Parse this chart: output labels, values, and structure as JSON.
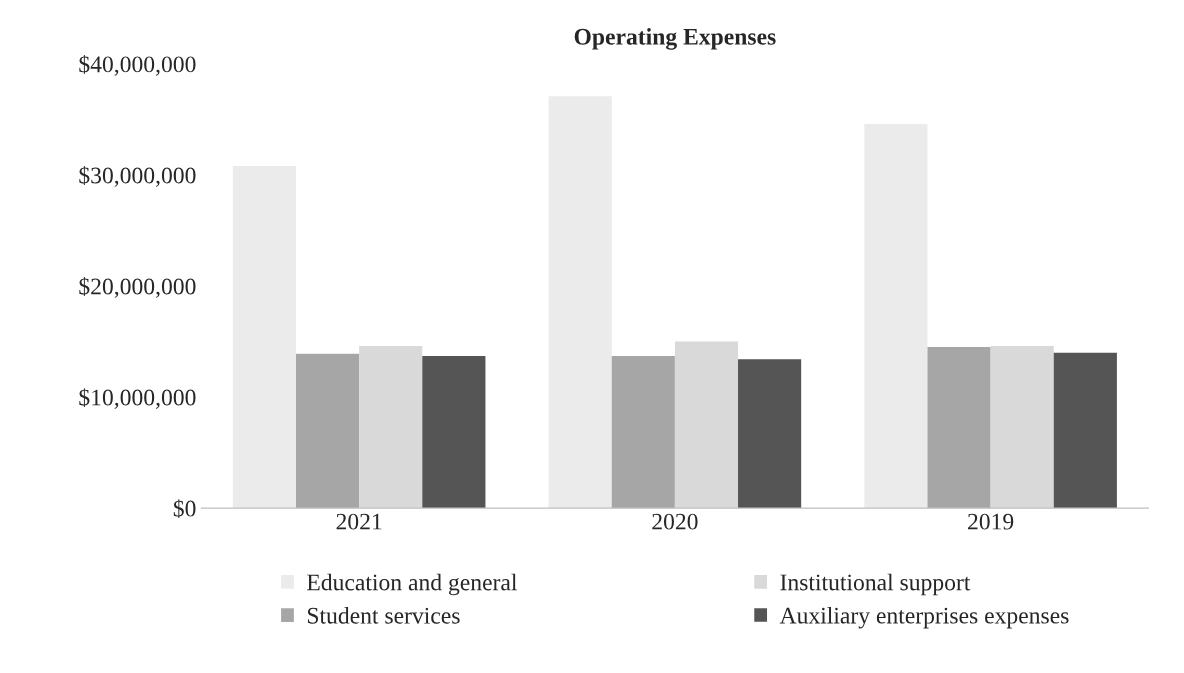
{
  "chart_data": {
    "type": "bar",
    "title": "Operating Expenses",
    "categories": [
      "2021",
      "2020",
      "2019"
    ],
    "series": [
      {
        "name": "Education and general",
        "color": "#ebebeb",
        "values": [
          30800000,
          37100000,
          34600000
        ]
      },
      {
        "name": "Student services",
        "color": "#a6a6a6",
        "values": [
          13900000,
          13700000,
          14500000
        ]
      },
      {
        "name": "Institutional support",
        "color": "#d9d9d9",
        "values": [
          14600000,
          15000000,
          14600000
        ]
      },
      {
        "name": "Auxiliary enterprises expenses",
        "color": "#555555",
        "values": [
          13700000,
          13400000,
          14000000
        ]
      }
    ],
    "ylim": [
      0,
      40000000
    ],
    "yticks": [
      {
        "value": 0,
        "label": "$0"
      },
      {
        "value": 10000000,
        "label": "$10,000,000"
      },
      {
        "value": 20000000,
        "label": "$20,000,000"
      },
      {
        "value": 30000000,
        "label": "$30,000,000"
      },
      {
        "value": 40000000,
        "label": "$40,000,000"
      }
    ],
    "grid": false,
    "legend": "bottom"
  }
}
